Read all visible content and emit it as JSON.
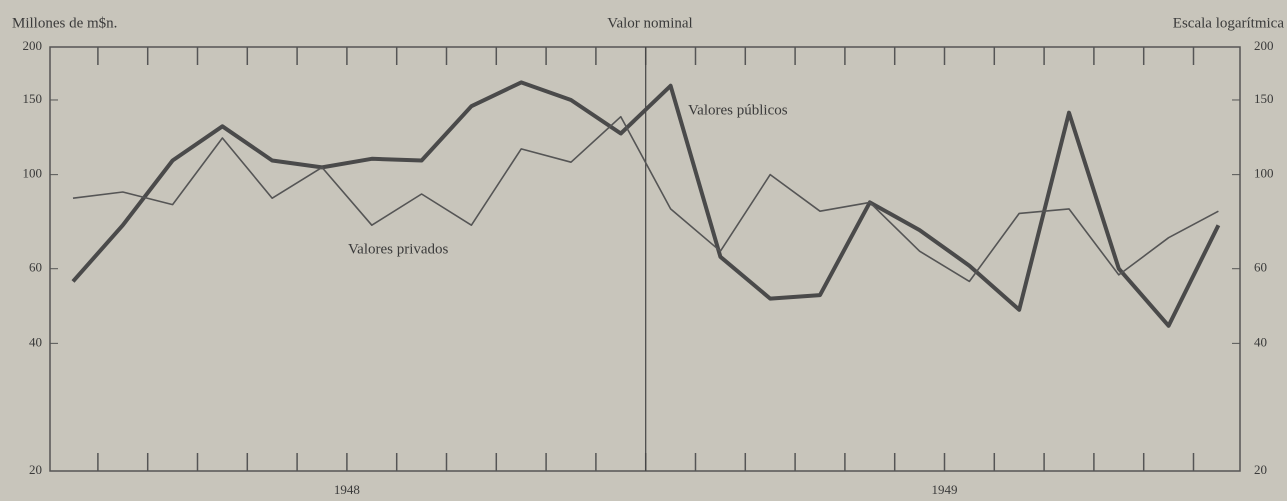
{
  "chart_data": {
    "type": "line",
    "title": "Valor nominal",
    "y_label": "Millones de m$n.",
    "note": "Escala logarítmica",
    "log_scale": true,
    "categories": [
      null,
      null,
      null,
      null,
      null,
      null,
      null,
      null,
      null,
      null,
      null,
      null,
      null,
      null,
      null,
      null,
      null,
      null,
      null,
      null,
      null,
      null,
      null,
      null
    ],
    "year_labels": [
      "1948",
      "1949"
    ],
    "series": [
      {
        "name": "Valores públicos",
        "color": "#4a4a4a",
        "values": [
          56,
          76,
          108,
          130,
          108,
          104,
          109,
          108,
          145,
          165,
          150,
          125,
          162,
          64,
          51,
          52,
          86,
          74,
          61,
          48,
          140,
          60,
          44,
          76
        ]
      },
      {
        "name": "Valores privados",
        "color": "#555555",
        "values": [
          88,
          91,
          85,
          122,
          88,
          104,
          76,
          90,
          76,
          115,
          107,
          137,
          83,
          66,
          100,
          82,
          86,
          66,
          56,
          81,
          83,
          58,
          71,
          82
        ]
      }
    ],
    "ylim": [
      20,
      200
    ],
    "yticks": [
      20,
      40,
      60,
      100,
      150,
      200
    ],
    "y2lim": [
      20,
      200
    ],
    "y2ticks": [
      20,
      40,
      60,
      100,
      150,
      200
    ]
  }
}
